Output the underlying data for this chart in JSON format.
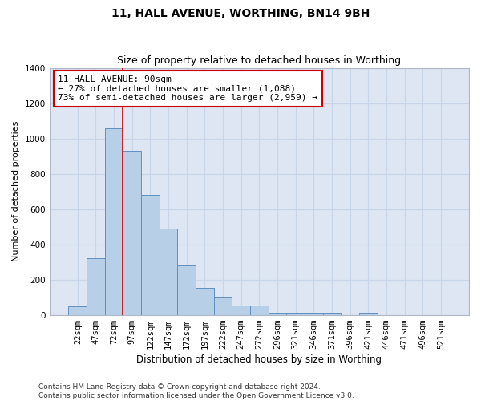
{
  "title1": "11, HALL AVENUE, WORTHING, BN14 9BH",
  "title2": "Size of property relative to detached houses in Worthing",
  "xlabel": "Distribution of detached houses by size in Worthing",
  "ylabel": "Number of detached properties",
  "categories": [
    "22sqm",
    "47sqm",
    "72sqm",
    "97sqm",
    "122sqm",
    "147sqm",
    "172sqm",
    "197sqm",
    "222sqm",
    "247sqm",
    "272sqm",
    "296sqm",
    "321sqm",
    "346sqm",
    "371sqm",
    "396sqm",
    "421sqm",
    "446sqm",
    "471sqm",
    "496sqm",
    "521sqm"
  ],
  "values": [
    50,
    320,
    1055,
    930,
    680,
    490,
    280,
    155,
    105,
    55,
    55,
    10,
    10,
    10,
    10,
    0,
    10,
    0,
    0,
    0,
    0
  ],
  "bar_color": "#b8cfe8",
  "bar_edge_color": "#6090c0",
  "bar_width": 1.0,
  "vline_position": 2.5,
  "vline_color": "#cc0000",
  "annotation_text": "11 HALL AVENUE: 90sqm\n← 27% of detached houses are smaller (1,088)\n73% of semi-detached houses are larger (2,959) →",
  "annotation_box_color": "#ffffff",
  "annotation_box_edge": "#cc0000",
  "ylim": [
    0,
    1400
  ],
  "yticks": [
    0,
    200,
    400,
    600,
    800,
    1000,
    1200,
    1400
  ],
  "grid_color": "#c8d4e8",
  "bg_color": "#dde6f2",
  "footer": "Contains HM Land Registry data © Crown copyright and database right 2024.\nContains public sector information licensed under the Open Government Licence v3.0.",
  "title1_fontsize": 10,
  "title2_fontsize": 9,
  "xlabel_fontsize": 8.5,
  "ylabel_fontsize": 8,
  "tick_fontsize": 7.5,
  "annotation_fontsize": 8,
  "footer_fontsize": 6.5
}
